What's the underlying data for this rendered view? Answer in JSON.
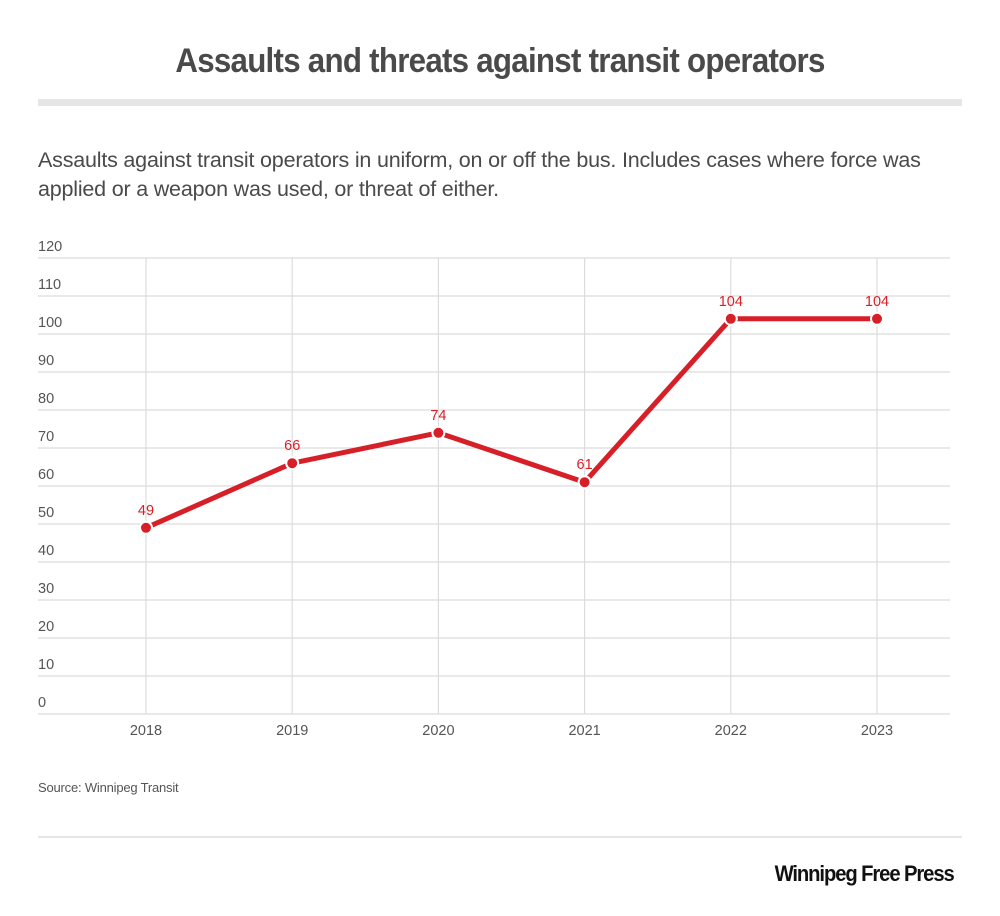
{
  "header": {
    "title": "Assaults and threats against transit operators",
    "subtitle": "Assaults against transit operators in uniform, on or off the bus. Includes cases where force was applied or a weapon was used, or threat of either."
  },
  "footer": {
    "source": "Source: Winnipeg Transit",
    "brand": "Winnipeg Free Press"
  },
  "colors": {
    "line": "#d71f28",
    "grid": "#dcdcdc",
    "tick_text": "#555555"
  },
  "chart_data": {
    "type": "line",
    "title": "Assaults and threats against transit operators",
    "xlabel": "",
    "ylabel": "",
    "categories": [
      "2018",
      "2019",
      "2020",
      "2021",
      "2022",
      "2023"
    ],
    "series": [
      {
        "name": "Assaults and threats",
        "values": [
          49,
          66,
          74,
          61,
          104,
          104
        ]
      }
    ],
    "data_labels": [
      "49",
      "66",
      "74",
      "61",
      "104",
      "104"
    ],
    "ylim": [
      0,
      120
    ],
    "yticks": [
      0,
      10,
      20,
      30,
      40,
      50,
      60,
      70,
      80,
      90,
      100,
      110,
      120
    ],
    "grid": true,
    "legend": "none",
    "markers": true
  }
}
